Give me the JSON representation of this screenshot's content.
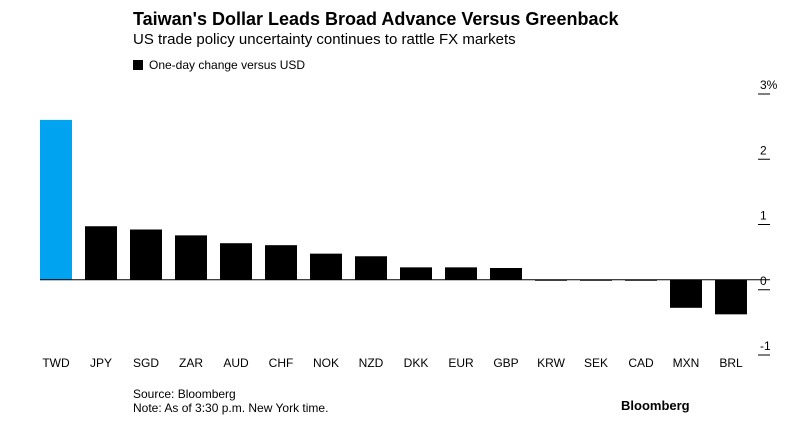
{
  "chart_data": {
    "type": "bar",
    "title": "Taiwan's Dollar Leads Broad Advance Versus Greenback",
    "subtitle": "US trade policy uncertainty continues to rattle FX markets",
    "legend": {
      "label": "One-day change versus USD",
      "placement": "top-left"
    },
    "categories": [
      "TWD",
      "JPY",
      "SGD",
      "ZAR",
      "AUD",
      "CHF",
      "NOK",
      "NZD",
      "DKK",
      "EUR",
      "GBP",
      "KRW",
      "SEK",
      "CAD",
      "MXN",
      "BRL"
    ],
    "series": [
      {
        "name": "One-day change versus USD",
        "values": [
          2.45,
          0.82,
          0.77,
          0.68,
          0.56,
          0.53,
          0.4,
          0.36,
          0.19,
          0.19,
          0.18,
          -0.01,
          -0.01,
          -0.01,
          -0.43,
          -0.53
        ]
      }
    ],
    "highlight_color": "#00a3f0",
    "bar_color": "#000000",
    "y_ticks": [
      "3%",
      "2",
      "1",
      "0",
      "-1"
    ],
    "y_tick_values": [
      3,
      2,
      1,
      0,
      -1
    ],
    "ylim": [
      -1,
      3
    ],
    "y_axis_side": "right",
    "grid": false
  },
  "source": "Source: Bloomberg",
  "note": "Note: As of 3:30 p.m. New York time.",
  "brand": "Bloomberg"
}
